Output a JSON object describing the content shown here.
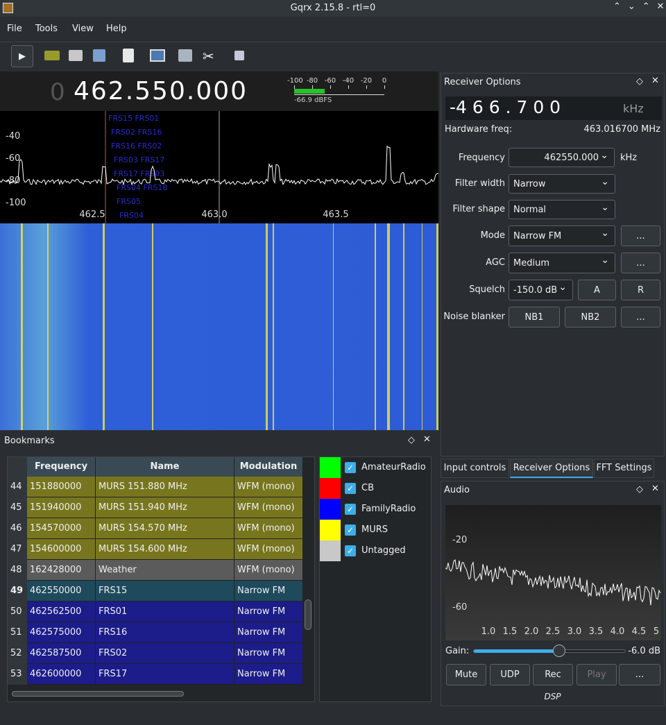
{
  "window": {
    "title": "Gqrx 2.15.8 - rtl=0"
  },
  "menu": [
    "File",
    "Tools",
    "View",
    "Help"
  ],
  "frequency_display": {
    "leading": "0",
    "value": "462.550.000"
  },
  "meter": {
    "ticks": [
      "-100",
      "-80",
      "-60",
      "-40",
      "-20",
      "0"
    ],
    "reading": "-66.9 dBFS"
  },
  "spectrum": {
    "y_labels": [
      "-40",
      "-60",
      "-80",
      "-100"
    ],
    "x_labels": [
      "462.5",
      "463.0",
      "463.5"
    ],
    "bookmark_labels": [
      "FRS15 FRS01",
      "FRS02 FRS16",
      "FRS16 FRS02",
      "FRS03 FRS17",
      "FRS17 FRS03",
      "FRS04 FRS18",
      "FRS05",
      "FRS04"
    ]
  },
  "receiver_options": {
    "title": "Receiver Options",
    "offset": "-4 6 6 . 7 0 0",
    "offset_unit": "kHz",
    "hardware_freq_label": "Hardware freq:",
    "hardware_freq": "463.016700 MHz",
    "frequency_label": "Frequency",
    "frequency": "462550.000",
    "frequency_unit": "kHz",
    "filter_width_label": "Filter width",
    "filter_width": "Narrow",
    "filter_shape_label": "Filter shape",
    "filter_shape": "Normal",
    "mode_label": "Mode",
    "mode": "Narrow FM",
    "mode_more": "...",
    "agc_label": "AGC",
    "agc": "Medium",
    "agc_more": "...",
    "squelch_label": "Squelch",
    "squelch": "-150.0 dB",
    "squelch_a": "A",
    "squelch_r": "R",
    "noise_blanker_label": "Noise blanker",
    "nb1": "NB1",
    "nb2": "NB2",
    "nb_more": "..."
  },
  "tabs": [
    "Input controls",
    "Receiver Options",
    "FFT Settings"
  ],
  "audio": {
    "title": "Audio",
    "y_labels": [
      "-20",
      "-60"
    ],
    "x_labels": [
      "1.0",
      "1.5",
      "2.0",
      "2.5",
      "3.0",
      "3.5",
      "4.0",
      "4.5",
      "5"
    ],
    "gain_label": "Gain:",
    "gain": "-6.0 dB",
    "buttons": [
      "Mute",
      "UDP",
      "Rec",
      "Play",
      "..."
    ],
    "dsp": "DSP"
  },
  "bookmarks": {
    "title": "Bookmarks",
    "columns": [
      "Frequency",
      "Name",
      "Modulation"
    ],
    "rows": [
      {
        "index": "44",
        "frequency": "151880000",
        "name": "MURS 151.880 MHz",
        "modulation": "WFM (mono)",
        "color": "#77761e"
      },
      {
        "index": "45",
        "frequency": "151940000",
        "name": "MURS 151.940 MHz",
        "modulation": "WFM (mono)",
        "color": "#77761e"
      },
      {
        "index": "46",
        "frequency": "154570000",
        "name": "MURS 154.570 MHz",
        "modulation": "WFM (mono)",
        "color": "#77761e"
      },
      {
        "index": "47",
        "frequency": "154600000",
        "name": "MURS 154.600 MHz",
        "modulation": "WFM (mono)",
        "color": "#77761e"
      },
      {
        "index": "48",
        "frequency": "162428000",
        "name": "Weather",
        "modulation": "WFM (mono)",
        "color": "#5b5b5b"
      },
      {
        "index": "49",
        "frequency": "462550000",
        "name": "FRS15",
        "modulation": "Narrow FM",
        "color": "#1e4a5c"
      },
      {
        "index": "50",
        "frequency": "462562500",
        "name": "FRS01",
        "modulation": "Narrow FM",
        "color": "#1c1c8a"
      },
      {
        "index": "51",
        "frequency": "462575000",
        "name": "FRS16",
        "modulation": "Narrow FM",
        "color": "#1c1c8a"
      },
      {
        "index": "52",
        "frequency": "462587500",
        "name": "FRS02",
        "modulation": "Narrow FM",
        "color": "#1c1c8a"
      },
      {
        "index": "53",
        "frequency": "462600000",
        "name": "FRS17",
        "modulation": "Narrow FM",
        "color": "#1c1c8a"
      }
    ],
    "tags": [
      {
        "name": "AmateurRadio",
        "color": "#00ff00"
      },
      {
        "name": "CB",
        "color": "#ff0000"
      },
      {
        "name": "FamilyRadio",
        "color": "#0000ff"
      },
      {
        "name": "MURS",
        "color": "#ffff00"
      },
      {
        "name": "Untagged",
        "color": "#c8c8c8"
      }
    ]
  }
}
